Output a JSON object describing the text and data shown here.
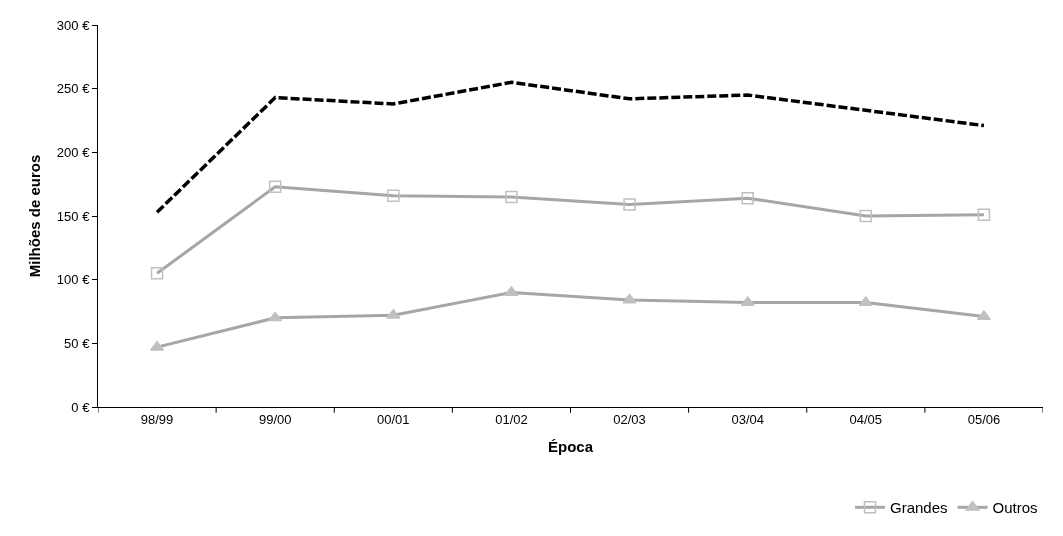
{
  "chart_data": {
    "type": "line",
    "xlabel": "Época",
    "ylabel": "Milhões de euros",
    "categories": [
      "98/99",
      "99/00",
      "00/01",
      "01/02",
      "02/03",
      "03/04",
      "04/05",
      "05/06"
    ],
    "series": [
      {
        "color": "#000000",
        "line_style": "dashed",
        "marker": "none",
        "values": [
          153,
          243,
          238,
          255,
          242,
          245,
          233,
          221
        ]
      },
      {
        "name": "Grandes",
        "color": "#a6a6a6",
        "line_style": "solid",
        "marker": "square",
        "values": [
          105,
          173,
          166,
          165,
          159,
          164,
          150,
          151
        ]
      },
      {
        "name": "Outros",
        "color": "#a6a6a6",
        "line_style": "solid",
        "marker": "triangle",
        "values": [
          47,
          70,
          72,
          90,
          84,
          82,
          82,
          71
        ]
      }
    ],
    "ylim": [
      0,
      300
    ],
    "yticks": [
      {
        "value": 0,
        "label": "0 €"
      },
      {
        "value": 50,
        "label": "50 €"
      },
      {
        "value": 100,
        "label": "100 €"
      },
      {
        "value": 150,
        "label": "150 €"
      },
      {
        "value": 200,
        "label": "200 €"
      },
      {
        "value": 250,
        "label": "250 €"
      },
      {
        "value": 300,
        "label": "300 €"
      }
    ],
    "grid": false,
    "legend": "bottom right"
  }
}
